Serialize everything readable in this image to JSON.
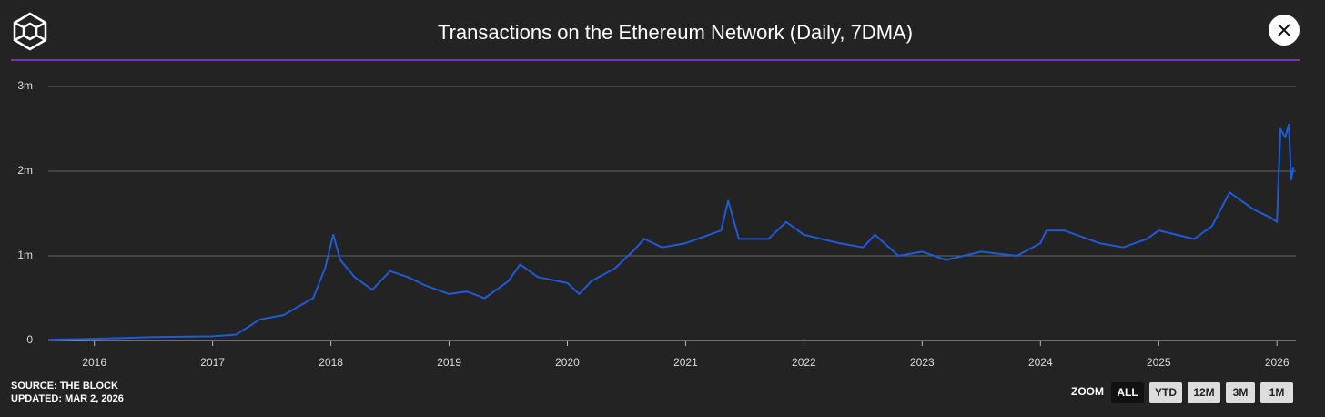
{
  "chart_data": {
    "type": "line",
    "title": "Transactions on the Ethereum Network (Daily, 7DMA)",
    "x": [
      2015.61,
      2016.0,
      2016.5,
      2017.0,
      2017.2,
      2017.4,
      2017.6,
      2017.75,
      2017.85,
      2017.95,
      2018.02,
      2018.08,
      2018.2,
      2018.35,
      2018.5,
      2018.65,
      2018.8,
      2019.0,
      2019.15,
      2019.3,
      2019.5,
      2019.6,
      2019.75,
      2020.0,
      2020.1,
      2020.2,
      2020.4,
      2020.55,
      2020.65,
      2020.8,
      2021.0,
      2021.2,
      2021.3,
      2021.36,
      2021.45,
      2021.7,
      2021.85,
      2022.0,
      2022.3,
      2022.5,
      2022.6,
      2022.8,
      2023.0,
      2023.2,
      2023.5,
      2023.8,
      2024.0,
      2024.05,
      2024.2,
      2024.5,
      2024.7,
      2024.9,
      2025.0,
      2025.3,
      2025.45,
      2025.6,
      2025.8,
      2025.95,
      2026.0,
      2026.03,
      2026.07,
      2026.1,
      2026.12,
      2026.14
    ],
    "series": [
      {
        "color": "#1f5ad8",
        "values": [
          10000,
          20000,
          40000,
          50000,
          70000,
          250000,
          300000,
          420000,
          500000,
          850000,
          1250000,
          950000,
          750000,
          600000,
          820000,
          750000,
          650000,
          550000,
          580000,
          500000,
          700000,
          900000,
          750000,
          680000,
          550000,
          700000,
          850000,
          1050000,
          1200000,
          1100000,
          1150000,
          1250000,
          1300000,
          1650000,
          1200000,
          1200000,
          1400000,
          1250000,
          1150000,
          1100000,
          1250000,
          1000000,
          1050000,
          950000,
          1050000,
          1000000,
          1150000,
          1300000,
          1300000,
          1150000,
          1100000,
          1200000,
          1300000,
          1200000,
          1350000,
          1750000,
          1550000,
          1450000,
          1400000,
          2500000,
          2400000,
          2550000,
          1900000,
          2050000
        ]
      }
    ],
    "xlim": [
      2015.61,
      2026.16
    ],
    "xticks": [
      2016,
      2017,
      2018,
      2019,
      2020,
      2021,
      2022,
      2023,
      2024,
      2025,
      2026
    ],
    "ylim": [
      0,
      3000000
    ],
    "yticks": [
      {
        "value": 0,
        "label": "0"
      },
      {
        "value": 1000000,
        "label": "1m"
      },
      {
        "value": 2000000,
        "label": "2m"
      },
      {
        "value": 3000000,
        "label": "3m"
      }
    ],
    "grid": true
  },
  "source": "SOURCE: THE BLOCK",
  "updated": "UPDATED: MAR 2, 2026",
  "zoom": {
    "label": "ZOOM",
    "buttons": [
      "ALL",
      "YTD",
      "12M",
      "3M",
      "1M"
    ]
  }
}
